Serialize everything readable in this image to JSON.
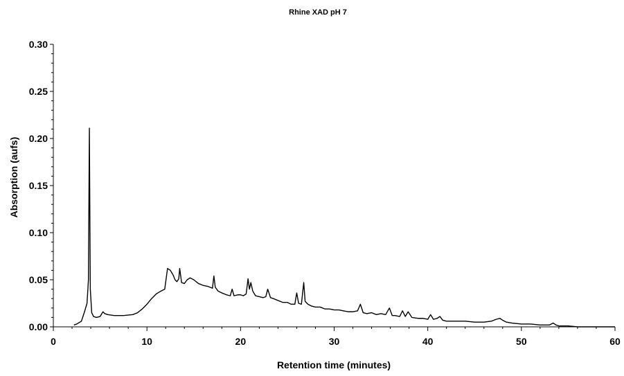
{
  "chart_data": {
    "type": "line",
    "title": "Rhine XAD pH 7",
    "xlabel": "Retention time (minutes)",
    "ylabel": "Absorption  (aufs)",
    "xlim": [
      0,
      60
    ],
    "ylim": [
      0,
      0.3
    ],
    "x_ticks": [
      "0",
      "10",
      "20",
      "30",
      "40",
      "50",
      "60"
    ],
    "y_ticks": [
      "0.00",
      "0.05",
      "0.10",
      "0.15",
      "0.20",
      "0.25",
      "0.30"
    ],
    "grid": false,
    "legend": "none",
    "series": [
      {
        "x": [
          2.2,
          2.5,
          3.0,
          3.3,
          3.6,
          3.75,
          3.85,
          3.95,
          4.1,
          4.3,
          4.6,
          5.0,
          5.3,
          5.5,
          5.8,
          6.5,
          7.5,
          8.5,
          9.0,
          9.5,
          10.0,
          10.5,
          11.0,
          11.5,
          11.9,
          12.2,
          12.5,
          12.8,
          13.0,
          13.2,
          13.4,
          13.5,
          13.7,
          14.0,
          14.3,
          14.6,
          15.0,
          15.5,
          16.0,
          16.5,
          17.0,
          17.15,
          17.3,
          17.6,
          18.0,
          18.5,
          18.9,
          19.1,
          19.3,
          19.7,
          20.0,
          20.3,
          20.6,
          20.8,
          20.95,
          21.1,
          21.3,
          21.6,
          22.0,
          22.4,
          22.7,
          22.9,
          23.2,
          23.5,
          24.0,
          24.5,
          25.0,
          25.4,
          25.8,
          26.0,
          26.2,
          26.5,
          26.75,
          26.9,
          27.2,
          27.6,
          28.0,
          28.5,
          29.0,
          29.5,
          30.0,
          30.5,
          31.0,
          31.5,
          32.0,
          32.5,
          32.8,
          33.1,
          33.5,
          34.0,
          34.5,
          35.0,
          35.5,
          35.9,
          36.2,
          36.5,
          37.0,
          37.3,
          37.6,
          37.9,
          38.3,
          39.0,
          39.5,
          40.0,
          40.3,
          40.6,
          41.0,
          41.3,
          41.6,
          42.0,
          43.0,
          44.0,
          45.0,
          46.0,
          46.8,
          47.3,
          47.7,
          48.0,
          48.4,
          49.0,
          50.0,
          51.0,
          52.0,
          53.0,
          53.4,
          53.7,
          54.0,
          54.5,
          55.0,
          56.0,
          58.0,
          60.0
        ],
        "y": [
          0.002,
          0.003,
          0.006,
          0.015,
          0.025,
          0.05,
          0.211,
          0.04,
          0.015,
          0.011,
          0.01,
          0.011,
          0.016,
          0.014,
          0.013,
          0.012,
          0.012,
          0.013,
          0.015,
          0.019,
          0.024,
          0.03,
          0.035,
          0.038,
          0.04,
          0.062,
          0.06,
          0.055,
          0.05,
          0.048,
          0.051,
          0.062,
          0.047,
          0.046,
          0.05,
          0.052,
          0.05,
          0.046,
          0.044,
          0.043,
          0.041,
          0.054,
          0.042,
          0.038,
          0.036,
          0.034,
          0.033,
          0.04,
          0.033,
          0.034,
          0.034,
          0.033,
          0.035,
          0.051,
          0.04,
          0.047,
          0.038,
          0.033,
          0.032,
          0.031,
          0.032,
          0.04,
          0.031,
          0.03,
          0.028,
          0.026,
          0.026,
          0.024,
          0.024,
          0.036,
          0.025,
          0.024,
          0.047,
          0.027,
          0.024,
          0.022,
          0.021,
          0.021,
          0.019,
          0.019,
          0.018,
          0.018,
          0.017,
          0.016,
          0.016,
          0.017,
          0.024,
          0.015,
          0.014,
          0.015,
          0.013,
          0.014,
          0.013,
          0.02,
          0.012,
          0.012,
          0.011,
          0.017,
          0.011,
          0.016,
          0.01,
          0.009,
          0.009,
          0.008,
          0.013,
          0.008,
          0.009,
          0.011,
          0.007,
          0.006,
          0.006,
          0.006,
          0.005,
          0.005,
          0.006,
          0.008,
          0.009,
          0.007,
          0.005,
          0.004,
          0.003,
          0.003,
          0.002,
          0.002,
          0.004,
          0.002,
          0.001,
          0.001,
          0.001,
          0.0,
          0.0,
          0.0
        ]
      }
    ]
  }
}
